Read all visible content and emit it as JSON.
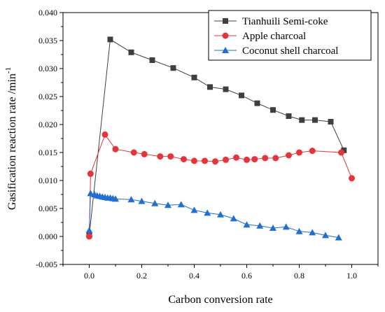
{
  "chart_data": {
    "type": "line",
    "xlabel": "Carbon conversion rate",
    "ylabel": "Gasification reaction rate /min",
    "ylabel_superscript": "-1",
    "xlim": [
      -0.1,
      1.1
    ],
    "ylim": [
      -0.005,
      0.04
    ],
    "x_ticks": [
      "0.0",
      "0.2",
      "0.4",
      "0.6",
      "0.8",
      "1.0"
    ],
    "y_ticks": [
      "-0.005",
      "0.000",
      "0.005",
      "0.010",
      "0.015",
      "0.020",
      "0.025",
      "0.030",
      "0.035",
      "0.040"
    ],
    "grid": false,
    "legend_position": "top-right",
    "series": [
      {
        "name": "Tianhuili Semi-coke",
        "color": "#3f3f3f",
        "marker": "square",
        "x": [
          0.0,
          0.08,
          0.16,
          0.24,
          0.32,
          0.4,
          0.46,
          0.52,
          0.58,
          0.64,
          0.7,
          0.76,
          0.81,
          0.86,
          0.92,
          0.97
        ],
        "y": [
          0.0002,
          0.0352,
          0.0329,
          0.0315,
          0.0301,
          0.0284,
          0.0267,
          0.0263,
          0.0252,
          0.0238,
          0.0226,
          0.0215,
          0.0208,
          0.0208,
          0.0205,
          0.0154
        ]
      },
      {
        "name": "Apple charcoal",
        "color": "#e8333a",
        "marker": "circle",
        "x": [
          0.0,
          0.005,
          0.06,
          0.1,
          0.17,
          0.21,
          0.27,
          0.31,
          0.36,
          0.4,
          0.44,
          0.48,
          0.52,
          0.56,
          0.6,
          0.63,
          0.67,
          0.71,
          0.76,
          0.8,
          0.85,
          0.96,
          1.0
        ],
        "y": [
          0.0,
          0.0112,
          0.0182,
          0.0156,
          0.015,
          0.0147,
          0.0143,
          0.0143,
          0.0138,
          0.0135,
          0.0135,
          0.0134,
          0.0137,
          0.0141,
          0.0137,
          0.0138,
          0.014,
          0.014,
          0.0145,
          0.015,
          0.0153,
          0.015,
          0.0104
        ]
      },
      {
        "name": "Coconut shell charcoal",
        "color": "#1f6fd6",
        "marker": "triangle",
        "x": [
          0.0,
          0.005,
          0.02,
          0.03,
          0.04,
          0.05,
          0.06,
          0.07,
          0.08,
          0.09,
          0.1,
          0.16,
          0.2,
          0.25,
          0.3,
          0.35,
          0.4,
          0.45,
          0.5,
          0.55,
          0.6,
          0.65,
          0.7,
          0.75,
          0.8,
          0.85,
          0.9,
          0.95
        ],
        "y": [
          0.0011,
          0.0077,
          0.0075,
          0.0073,
          0.0072,
          0.0071,
          0.007,
          0.0069,
          0.0069,
          0.0068,
          0.0067,
          0.0066,
          0.0063,
          0.0059,
          0.0056,
          0.0057,
          0.0047,
          0.0042,
          0.0039,
          0.0032,
          0.0021,
          0.0019,
          0.0015,
          0.0017,
          0.0009,
          0.0007,
          0.0002,
          -0.0002
        ]
      }
    ]
  }
}
